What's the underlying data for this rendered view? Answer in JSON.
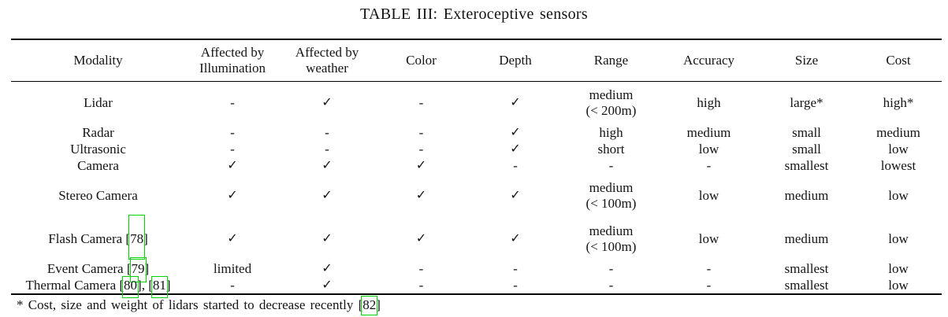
{
  "title": "TABLE III: Exteroceptive sensors",
  "colors": {
    "link_green": "#00d400",
    "text": "#141414",
    "rule": "#000000"
  },
  "icons": {
    "check": "check-icon"
  },
  "table": {
    "columns": [
      "Modality",
      "Affected by\nIllumination",
      "Affected by\nweather",
      "Color",
      "Depth",
      "Range",
      "Accuracy",
      "Size",
      "Cost"
    ],
    "rows": [
      {
        "modality": [
          {
            "text": "Lidar"
          }
        ],
        "cells": [
          "-",
          "✓",
          "-",
          "✓",
          "medium\n(< 200m)",
          "high",
          "large*",
          "high*"
        ]
      },
      {
        "modality": [
          {
            "text": "Radar"
          }
        ],
        "cells": [
          "-",
          "-",
          "-",
          "✓",
          "high",
          "medium",
          "small",
          "medium"
        ]
      },
      {
        "modality": [
          {
            "text": "Ultrasonic"
          }
        ],
        "cells": [
          "-",
          "-",
          "-",
          "✓",
          "short",
          "low",
          "small",
          "low"
        ]
      },
      {
        "modality": [
          {
            "text": "Camera"
          }
        ],
        "cells": [
          "✓",
          "✓",
          "✓",
          "-",
          "-",
          "-",
          "smallest",
          "lowest"
        ]
      },
      {
        "modality": [
          {
            "text": "Stereo Camera"
          }
        ],
        "cells": [
          "✓",
          "✓",
          "✓",
          "✓",
          "medium\n(< 100m)",
          "low",
          "medium",
          "low"
        ]
      },
      {
        "modality": [
          {
            "text": "Flash Camera ["
          },
          {
            "cite": "78"
          },
          {
            "text": "]"
          }
        ],
        "cells": [
          "✓",
          "✓",
          "✓",
          "✓",
          "medium\n(< 100m)",
          "low",
          "medium",
          "low"
        ]
      },
      {
        "modality": [
          {
            "text": "Event Camera ["
          },
          {
            "cite": "79"
          },
          {
            "text": "]"
          }
        ],
        "cells": [
          "limited",
          "✓",
          "-",
          "-",
          "-",
          "-",
          "smallest",
          "low"
        ]
      },
      {
        "modality": [
          {
            "text": "Thermal Camera ["
          },
          {
            "cite": "80"
          },
          {
            "text": "], ["
          },
          {
            "cite": "81"
          },
          {
            "text": "]"
          }
        ],
        "cells": [
          "-",
          "✓",
          "-",
          "-",
          "-",
          "-",
          "smallest",
          "low"
        ]
      }
    ]
  },
  "footnote": [
    {
      "text": "* Cost, size and weight of lidars started to decrease recently ["
    },
    {
      "cite": "82"
    },
    {
      "text": "]"
    }
  ]
}
